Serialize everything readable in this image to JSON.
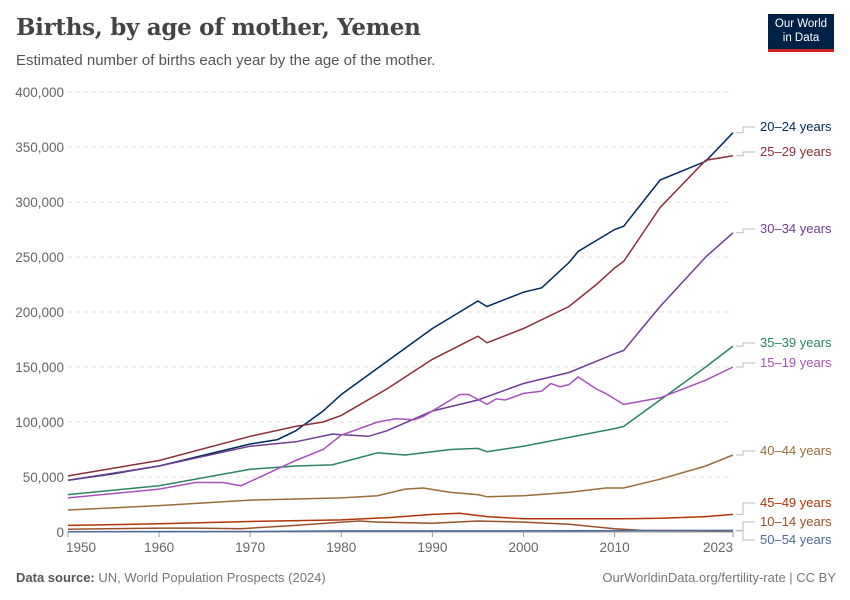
{
  "header": {
    "title": "Births, by age of mother, Yemen",
    "subtitle": "Estimated number of births each year by the age of the mother.",
    "logo": "Our World in Data"
  },
  "footer": {
    "source_label": "Data source:",
    "source": "UN, World Population Prospects (2024)",
    "license": "OurWorldinData.org/fertility-rate | CC BY"
  },
  "chart_data": {
    "type": "line",
    "title": "Births, by age of mother, Yemen",
    "xlim": [
      1950,
      2023
    ],
    "ylim": [
      0,
      400000
    ],
    "x_ticks": [
      "1950",
      "1960",
      "1970",
      "1980",
      "1990",
      "2000",
      "2010",
      "2023"
    ],
    "y_ticks": [
      "0",
      "50,000",
      "100,000",
      "150,000",
      "200,000",
      "250,000",
      "300,000",
      "350,000",
      "400,000"
    ],
    "grid": "horizontal dashed",
    "legend": "right (line-end labels)",
    "series": [
      {
        "name": "20–24 years",
        "color": "#00295b",
        "points": [
          [
            1950,
            47000
          ],
          [
            1955,
            53000
          ],
          [
            1960,
            60000
          ],
          [
            1965,
            70000
          ],
          [
            1970,
            80000
          ],
          [
            1973,
            84000
          ],
          [
            1975,
            92000
          ],
          [
            1978,
            110000
          ],
          [
            1980,
            125000
          ],
          [
            1985,
            155000
          ],
          [
            1990,
            185000
          ],
          [
            1993,
            200000
          ],
          [
            1995,
            210000
          ],
          [
            1996,
            205000
          ],
          [
            2000,
            218000
          ],
          [
            2002,
            222000
          ],
          [
            2005,
            245000
          ],
          [
            2006,
            255000
          ],
          [
            2010,
            275000
          ],
          [
            2011,
            278000
          ],
          [
            2015,
            320000
          ],
          [
            2020,
            337000
          ],
          [
            2023,
            363000
          ]
        ]
      },
      {
        "name": "25–29 years",
        "color": "#883039",
        "points": [
          [
            1950,
            51000
          ],
          [
            1960,
            65000
          ],
          [
            1970,
            87000
          ],
          [
            1975,
            96000
          ],
          [
            1978,
            100000
          ],
          [
            1980,
            106000
          ],
          [
            1985,
            130000
          ],
          [
            1990,
            157000
          ],
          [
            1995,
            178000
          ],
          [
            1996,
            172000
          ],
          [
            2000,
            185000
          ],
          [
            2005,
            205000
          ],
          [
            2008,
            225000
          ],
          [
            2010,
            240000
          ],
          [
            2011,
            246000
          ],
          [
            2015,
            295000
          ],
          [
            2020,
            338000
          ],
          [
            2023,
            342000
          ]
        ]
      },
      {
        "name": "30–34 years",
        "color": "#6d3e91",
        "points": [
          [
            1950,
            47000
          ],
          [
            1960,
            60000
          ],
          [
            1970,
            78000
          ],
          [
            1975,
            82000
          ],
          [
            1979,
            89000
          ],
          [
            1983,
            87000
          ],
          [
            1985,
            92000
          ],
          [
            1990,
            110000
          ],
          [
            1995,
            120000
          ],
          [
            2000,
            135000
          ],
          [
            2005,
            145000
          ],
          [
            2010,
            162000
          ],
          [
            2011,
            165000
          ],
          [
            2015,
            205000
          ],
          [
            2020,
            250000
          ],
          [
            2023,
            272000
          ]
        ]
      },
      {
        "name": "35–39 years",
        "color": "#2c8465",
        "points": [
          [
            1950,
            34000
          ],
          [
            1960,
            42000
          ],
          [
            1970,
            57000
          ],
          [
            1975,
            60000
          ],
          [
            1979,
            61000
          ],
          [
            1984,
            72000
          ],
          [
            1987,
            70000
          ],
          [
            1992,
            75000
          ],
          [
            1995,
            76000
          ],
          [
            1996,
            73000
          ],
          [
            2000,
            78000
          ],
          [
            2005,
            86000
          ],
          [
            2010,
            94000
          ],
          [
            2011,
            96000
          ],
          [
            2015,
            120000
          ],
          [
            2020,
            150000
          ],
          [
            2023,
            169000
          ]
        ]
      },
      {
        "name": "15–19 years",
        "color": "#a652ba",
        "points": [
          [
            1950,
            31000
          ],
          [
            1960,
            39000
          ],
          [
            1964,
            45000
          ],
          [
            1967,
            45000
          ],
          [
            1969,
            42000
          ],
          [
            1975,
            65000
          ],
          [
            1978,
            75000
          ],
          [
            1980,
            88000
          ],
          [
            1984,
            100000
          ],
          [
            1986,
            103000
          ],
          [
            1988,
            102000
          ],
          [
            1989,
            105000
          ],
          [
            1993,
            125000
          ],
          [
            1994,
            125000
          ],
          [
            1996,
            116000
          ],
          [
            1997,
            121000
          ],
          [
            1998,
            120000
          ],
          [
            2000,
            126000
          ],
          [
            2002,
            128000
          ],
          [
            2003,
            135000
          ],
          [
            2004,
            132000
          ],
          [
            2005,
            134000
          ],
          [
            2006,
            141000
          ],
          [
            2008,
            130000
          ],
          [
            2009,
            126000
          ],
          [
            2011,
            116000
          ],
          [
            2015,
            122000
          ],
          [
            2020,
            138000
          ],
          [
            2023,
            150000
          ]
        ]
      },
      {
        "name": "40–44 years",
        "color": "#996d39",
        "points": [
          [
            1950,
            20000
          ],
          [
            1960,
            24000
          ],
          [
            1970,
            29000
          ],
          [
            1975,
            30000
          ],
          [
            1980,
            31000
          ],
          [
            1984,
            33000
          ],
          [
            1987,
            39000
          ],
          [
            1989,
            40000
          ],
          [
            1992,
            36000
          ],
          [
            1995,
            34000
          ],
          [
            1996,
            32000
          ],
          [
            2000,
            33000
          ],
          [
            2005,
            36000
          ],
          [
            2009,
            40000
          ],
          [
            2011,
            40000
          ],
          [
            2015,
            48000
          ],
          [
            2020,
            60000
          ],
          [
            2023,
            70000
          ]
        ]
      },
      {
        "name": "45–49 years",
        "color": "#b13507",
        "points": [
          [
            1950,
            6000
          ],
          [
            1960,
            7500
          ],
          [
            1970,
            9500
          ],
          [
            1980,
            11000
          ],
          [
            1985,
            13000
          ],
          [
            1990,
            16000
          ],
          [
            1993,
            17000
          ],
          [
            1996,
            14000
          ],
          [
            2000,
            12000
          ],
          [
            2005,
            12000
          ],
          [
            2010,
            12000
          ],
          [
            2015,
            12500
          ],
          [
            2020,
            14000
          ],
          [
            2023,
            16000
          ]
        ]
      },
      {
        "name": "10–14 years",
        "color": "#9a5129",
        "points": [
          [
            1950,
            2500
          ],
          [
            1960,
            3500
          ],
          [
            1964,
            3500
          ],
          [
            1969,
            3000
          ],
          [
            1975,
            6000
          ],
          [
            1980,
            9000
          ],
          [
            1982,
            10000
          ],
          [
            1984,
            9000
          ],
          [
            1990,
            8000
          ],
          [
            1995,
            10000
          ],
          [
            2000,
            9000
          ],
          [
            2005,
            7000
          ],
          [
            2010,
            3000
          ],
          [
            2013,
            1500
          ],
          [
            2023,
            1000
          ]
        ]
      },
      {
        "name": "50–54 years",
        "color": "#4c6a9c",
        "points": [
          [
            1950,
            300
          ],
          [
            1970,
            500
          ],
          [
            1980,
            1000
          ],
          [
            2000,
            1000
          ],
          [
            2023,
            1500
          ]
        ]
      }
    ]
  }
}
